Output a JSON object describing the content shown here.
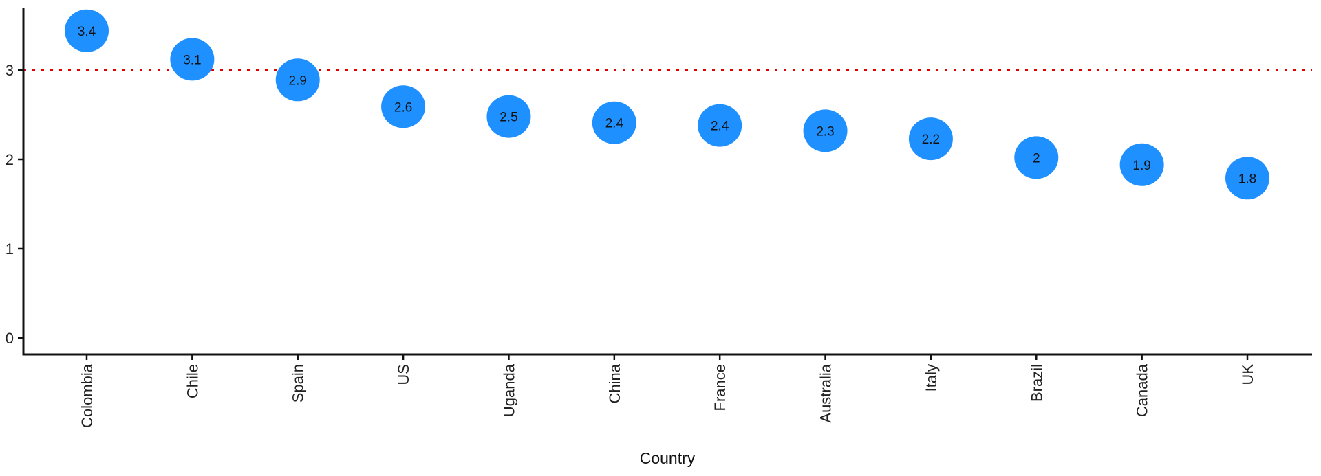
{
  "chart_data": {
    "type": "scatter",
    "title": "",
    "xlabel": "Country",
    "ylabel": "",
    "categories": [
      "Colombia",
      "Chile",
      "Spain",
      "US",
      "Uganda",
      "China",
      "France",
      "Australia",
      "Italy",
      "Brazil",
      "Canada",
      "UK"
    ],
    "values": [
      3.44,
      3.12,
      2.89,
      2.59,
      2.48,
      2.41,
      2.38,
      2.32,
      2.23,
      2.02,
      1.94,
      1.79
    ],
    "data_labels": [
      "3.4",
      "3.1",
      "2.9",
      "2.6",
      "2.5",
      "2.4",
      "2.4",
      "2.3",
      "2.2",
      "2",
      "1.9",
      "1.8"
    ],
    "yticks": [
      0,
      1,
      2,
      3
    ],
    "ytick_labels": [
      "0",
      "1",
      "2",
      "3"
    ],
    "ylim": [
      -0.16,
      3.73
    ],
    "reference_line": {
      "y": 3,
      "style": "dotted",
      "color": "#E00000"
    },
    "point_color": "#1E90FF",
    "grid": false,
    "legend": "none"
  }
}
